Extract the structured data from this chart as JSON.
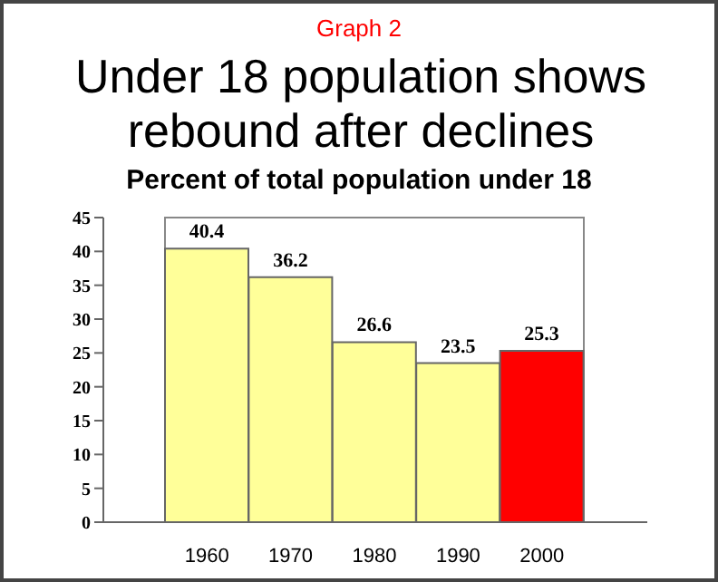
{
  "chart_data": {
    "type": "bar",
    "annotations": [
      "Graph 2"
    ],
    "title": "Under 18 population shows rebound after declines",
    "subtitle": "Percent of total population under 18",
    "categories": [
      "1960",
      "1970",
      "1980",
      "1990",
      "2000"
    ],
    "values": [
      40.4,
      36.2,
      26.6,
      23.5,
      25.3
    ],
    "colors": [
      "#ffff99",
      "#ffff99",
      "#ffff99",
      "#ffff99",
      "#ff0000"
    ],
    "ylim": [
      0,
      45
    ],
    "yticks": [
      0,
      5,
      10,
      15,
      20,
      25,
      30,
      35,
      40,
      45
    ],
    "data_labels": true
  }
}
